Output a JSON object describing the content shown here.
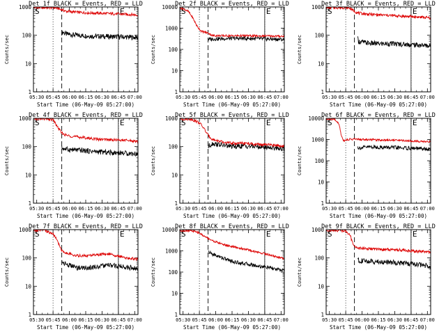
{
  "chart_data": [
    {
      "type": "line",
      "title": "Det 1f BLACK = Events, RED = LLD",
      "xlabel": "Start Time (06-May-09 05:27:00)",
      "ylabel": "Counts/sec",
      "x_ticks": [
        "05:30",
        "05:45",
        "06:00",
        "06:15",
        "06:30",
        "06:45",
        "07:00"
      ],
      "y_ticks": [
        "1",
        "10",
        "100",
        "1000"
      ],
      "ylim": [
        1,
        1000
      ],
      "y_scale": "log",
      "x_range_minutes": [
        0,
        96
      ],
      "markers": [
        {
          "label": "S",
          "t": 0
        },
        {
          "label": "E",
          "t": 78
        }
      ],
      "dotted_lines_minutes": [
        18,
        78
      ],
      "dashed_line_minutes": 26,
      "series": [
        {
          "name": "Events",
          "color": "#000000",
          "t": [
            26,
            27,
            30,
            40,
            50,
            60,
            70,
            80,
            90,
            96
          ],
          "values": [
            120,
            130,
            110,
            100,
            95,
            92,
            90,
            88,
            85,
            83
          ]
        },
        {
          "name": "LLD",
          "color": "#dd0000",
          "t": [
            0,
            10,
            18,
            22,
            26,
            30,
            40,
            50,
            60,
            70,
            80,
            90,
            96
          ],
          "values": [
            950,
            950,
            950,
            900,
            800,
            700,
            650,
            620,
            600,
            580,
            560,
            540,
            520
          ]
        }
      ]
    },
    {
      "type": "line",
      "title": "Det 2f BLACK = Events, RED = LLD",
      "xlabel": "Start Time (06-May-09 05:27:00)",
      "ylabel": "Counts/sec",
      "x_ticks": [
        "05:30",
        "05:45",
        "06:00",
        "06:15",
        "06:30",
        "06:45",
        "07:00"
      ],
      "y_ticks": [
        "1",
        "10",
        "100",
        "1000",
        "10000"
      ],
      "ylim": [
        1,
        10000
      ],
      "y_scale": "log",
      "x_range_minutes": [
        0,
        96
      ],
      "markers": [
        {
          "label": "S",
          "t": 0
        },
        {
          "label": "E",
          "t": 78
        }
      ],
      "dotted_lines_minutes": [
        18,
        78
      ],
      "dashed_line_minutes": 26,
      "series": [
        {
          "name": "Events",
          "color": "#000000",
          "t": [
            26,
            30,
            40,
            50,
            60,
            70,
            80,
            90,
            96
          ],
          "values": [
            300,
            310,
            320,
            330,
            330,
            320,
            310,
            300,
            290
          ]
        },
        {
          "name": "LLD",
          "color": "#dd0000",
          "t": [
            0,
            4,
            8,
            12,
            16,
            20,
            26,
            30,
            40,
            50,
            60,
            70,
            80,
            90,
            96
          ],
          "values": [
            9000,
            8000,
            6000,
            3000,
            1200,
            700,
            600,
            450,
            440,
            440,
            440,
            430,
            430,
            420,
            420
          ]
        }
      ]
    },
    {
      "type": "line",
      "title": "Det 3f BLACK = Events, RED = LLD",
      "xlabel": "Start Time (06-May-09 05:27:00)",
      "ylabel": "Counts/sec",
      "x_ticks": [
        "05:30",
        "05:45",
        "06:00",
        "06:15",
        "06:30",
        "06:45",
        "07:00"
      ],
      "y_ticks": [
        "1",
        "10",
        "100",
        "1000"
      ],
      "ylim": [
        1,
        1000
      ],
      "y_scale": "log",
      "x_range_minutes": [
        0,
        96
      ],
      "markers": [
        {
          "label": "S",
          "t": 0
        },
        {
          "label": "E",
          "t": 78
        }
      ],
      "dotted_lines_minutes": [
        18,
        78
      ],
      "dashed_line_minutes": 26,
      "series": [
        {
          "name": "Events",
          "color": "#000000",
          "t": [
            29,
            30,
            40,
            50,
            60,
            70,
            80,
            90,
            96
          ],
          "values": [
            75,
            60,
            52,
            50,
            50,
            48,
            46,
            44,
            42
          ]
        },
        {
          "name": "LLD",
          "color": "#dd0000",
          "t": [
            0,
            10,
            18,
            22,
            26,
            30,
            40,
            50,
            60,
            70,
            80,
            90,
            96
          ],
          "values": [
            950,
            950,
            950,
            900,
            700,
            600,
            550,
            520,
            500,
            470,
            450,
            430,
            400
          ]
        }
      ]
    },
    {
      "type": "line",
      "title": "Det 4f BLACK = Events, RED = LLD",
      "xlabel": "Start Time (06-May-09 05:27:00)",
      "ylabel": "Counts/sec",
      "x_ticks": [
        "05:30",
        "05:45",
        "06:00",
        "06:15",
        "06:30",
        "06:45",
        "07:00"
      ],
      "y_ticks": [
        "1",
        "10",
        "100",
        "1000"
      ],
      "ylim": [
        1,
        1000
      ],
      "y_scale": "log",
      "x_range_minutes": [
        0,
        96
      ],
      "markers": [
        {
          "label": "S",
          "t": 0
        },
        {
          "label": "E",
          "t": 78
        }
      ],
      "dotted_lines_minutes": [
        18,
        78
      ],
      "dashed_line_minutes": 26,
      "series": [
        {
          "name": "Events",
          "color": "#000000",
          "t": [
            26,
            30,
            40,
            50,
            60,
            70,
            80,
            90,
            96
          ],
          "values": [
            90,
            80,
            75,
            70,
            65,
            62,
            60,
            57,
            55
          ]
        },
        {
          "name": "LLD",
          "color": "#dd0000",
          "t": [
            0,
            10,
            18,
            22,
            26,
            30,
            40,
            50,
            60,
            70,
            80,
            90,
            96
          ],
          "values": [
            950,
            950,
            900,
            500,
            300,
            250,
            220,
            200,
            180,
            175,
            170,
            160,
            150
          ]
        }
      ]
    },
    {
      "type": "line",
      "title": "Det 5f BLACK = Events, RED = LLD",
      "xlabel": "Start Time (06-May-09 05:27:00)",
      "ylabel": "Counts/sec",
      "x_ticks": [
        "05:30",
        "05:45",
        "06:00",
        "06:15",
        "06:30",
        "06:45",
        "07:00"
      ],
      "y_ticks": [
        "1",
        "10",
        "100",
        "1000"
      ],
      "ylim": [
        1,
        1000
      ],
      "y_scale": "log",
      "x_range_minutes": [
        0,
        96
      ],
      "markers": [
        {
          "label": "S",
          "t": 0
        },
        {
          "label": "E",
          "t": 78
        }
      ],
      "dotted_lines_minutes": [
        18,
        78
      ],
      "dashed_line_minutes": 26,
      "series": [
        {
          "name": "Events",
          "color": "#000000",
          "t": [
            26,
            30,
            40,
            50,
            60,
            70,
            80,
            90,
            96
          ],
          "values": [
            100,
            130,
            110,
            100,
            105,
            100,
            95,
            90,
            85
          ]
        },
        {
          "name": "LLD",
          "color": "#dd0000",
          "t": [
            0,
            10,
            18,
            22,
            26,
            30,
            40,
            50,
            60,
            70,
            80,
            90,
            96
          ],
          "values": [
            950,
            950,
            700,
            450,
            250,
            180,
            140,
            130,
            130,
            120,
            115,
            110,
            105
          ]
        }
      ]
    },
    {
      "type": "line",
      "title": "Det 6f BLACK = Events, RED = LLD",
      "xlabel": "Start Time (06-May-09 05:27:00)",
      "ylabel": "Counts/sec",
      "x_ticks": [
        "05:30",
        "05:45",
        "06:00",
        "06:15",
        "06:30",
        "06:45",
        "07:00"
      ],
      "y_ticks": [
        "1",
        "10",
        "100",
        "1000",
        "10000"
      ],
      "ylim": [
        1,
        10000
      ],
      "y_scale": "log",
      "x_range_minutes": [
        0,
        96
      ],
      "markers": [
        {
          "label": "S",
          "t": 0
        },
        {
          "label": "E",
          "t": 78
        }
      ],
      "dotted_lines_minutes": [
        18,
        78
      ],
      "dashed_line_minutes": 26,
      "series": [
        {
          "name": "Events",
          "color": "#000000",
          "t": [
            29,
            30,
            40,
            50,
            60,
            70,
            80,
            90,
            96
          ],
          "values": [
            450,
            400,
            450,
            430,
            420,
            400,
            380,
            360,
            340
          ]
        },
        {
          "name": "LLD",
          "color": "#dd0000",
          "t": [
            0,
            8,
            12,
            14,
            16,
            20,
            26,
            30,
            40,
            50,
            60,
            70,
            80,
            90,
            96
          ],
          "values": [
            9000,
            9000,
            5000,
            1500,
            900,
            1000,
            1050,
            1000,
            1000,
            950,
            950,
            900,
            850,
            800,
            780
          ]
        }
      ]
    },
    {
      "type": "line",
      "title": "Det 7f BLACK = Events, RED = LLD",
      "xlabel": "Start Time (06-May-09 05:27:00)",
      "ylabel": "Counts/sec",
      "x_ticks": [
        "05:30",
        "05:45",
        "06:00",
        "06:15",
        "06:30",
        "06:45",
        "07:00"
      ],
      "y_ticks": [
        "1",
        "10",
        "100",
        "1000"
      ],
      "ylim": [
        1,
        1000
      ],
      "y_scale": "log",
      "x_range_minutes": [
        0,
        96
      ],
      "markers": [
        {
          "label": "S",
          "t": 0
        },
        {
          "label": "E",
          "t": 78
        }
      ],
      "dotted_lines_minutes": [
        18,
        78
      ],
      "dashed_line_minutes": 26,
      "series": [
        {
          "name": "Events",
          "color": "#000000",
          "t": [
            26,
            30,
            40,
            50,
            60,
            70,
            80,
            90,
            96
          ],
          "values": [
            75,
            60,
            45,
            45,
            50,
            55,
            50,
            45,
            40
          ]
        },
        {
          "name": "LLD",
          "color": "#dd0000",
          "t": [
            0,
            10,
            18,
            22,
            26,
            30,
            40,
            50,
            60,
            70,
            80,
            90,
            96
          ],
          "values": [
            950,
            950,
            700,
            400,
            180,
            150,
            120,
            120,
            130,
            140,
            110,
            95,
            90
          ]
        }
      ]
    },
    {
      "type": "line",
      "title": "Det 8f BLACK = Events, RED = LLD",
      "xlabel": "Start Time (06-May-09 05:27:00)",
      "ylabel": "Counts/sec",
      "x_ticks": [
        "05:30",
        "05:45",
        "06:00",
        "06:15",
        "06:30",
        "06:45",
        "07:00"
      ],
      "y_ticks": [
        "1",
        "10",
        "100",
        "1000",
        "10000"
      ],
      "ylim": [
        1,
        10000
      ],
      "y_scale": "log",
      "x_range_minutes": [
        0,
        96
      ],
      "markers": [
        {
          "label": "S",
          "t": 0
        },
        {
          "label": "E",
          "t": 78
        }
      ],
      "dotted_lines_minutes": [
        18,
        78
      ],
      "dashed_line_minutes": 26,
      "series": [
        {
          "name": "Events",
          "color": "#000000",
          "t": [
            26,
            30,
            40,
            50,
            60,
            70,
            80,
            90,
            96
          ],
          "values": [
            900,
            700,
            450,
            300,
            250,
            200,
            170,
            130,
            120
          ]
        },
        {
          "name": "LLD",
          "color": "#dd0000",
          "t": [
            0,
            10,
            18,
            22,
            26,
            30,
            40,
            50,
            60,
            70,
            80,
            90,
            96
          ],
          "values": [
            9000,
            9000,
            7000,
            5000,
            4000,
            3000,
            2000,
            1500,
            1200,
            900,
            700,
            500,
            450
          ]
        }
      ]
    },
    {
      "type": "line",
      "title": "Det 9f BLACK = Events, RED = LLD",
      "xlabel": "Start Time (06-May-09 05:27:00)",
      "ylabel": "Counts/sec",
      "x_ticks": [
        "05:30",
        "05:45",
        "06:00",
        "06:15",
        "06:30",
        "06:45",
        "07:00"
      ],
      "y_ticks": [
        "1",
        "10",
        "100",
        "1000"
      ],
      "ylim": [
        1,
        1000
      ],
      "y_scale": "log",
      "x_range_minutes": [
        0,
        96
      ],
      "markers": [
        {
          "label": "S",
          "t": 0
        },
        {
          "label": "E",
          "t": 78
        }
      ],
      "dotted_lines_minutes": [
        18,
        78
      ],
      "dashed_line_minutes": 26,
      "series": [
        {
          "name": "Events",
          "color": "#000000",
          "t": [
            29,
            30,
            40,
            50,
            60,
            70,
            80,
            90,
            96
          ],
          "values": [
            100,
            80,
            75,
            72,
            70,
            65,
            60,
            55,
            52
          ]
        },
        {
          "name": "LLD",
          "color": "#dd0000",
          "t": [
            0,
            10,
            18,
            22,
            26,
            30,
            40,
            50,
            60,
            70,
            80,
            90,
            96
          ],
          "values": [
            950,
            950,
            900,
            600,
            250,
            220,
            210,
            200,
            195,
            190,
            175,
            165,
            160
          ]
        }
      ]
    }
  ]
}
